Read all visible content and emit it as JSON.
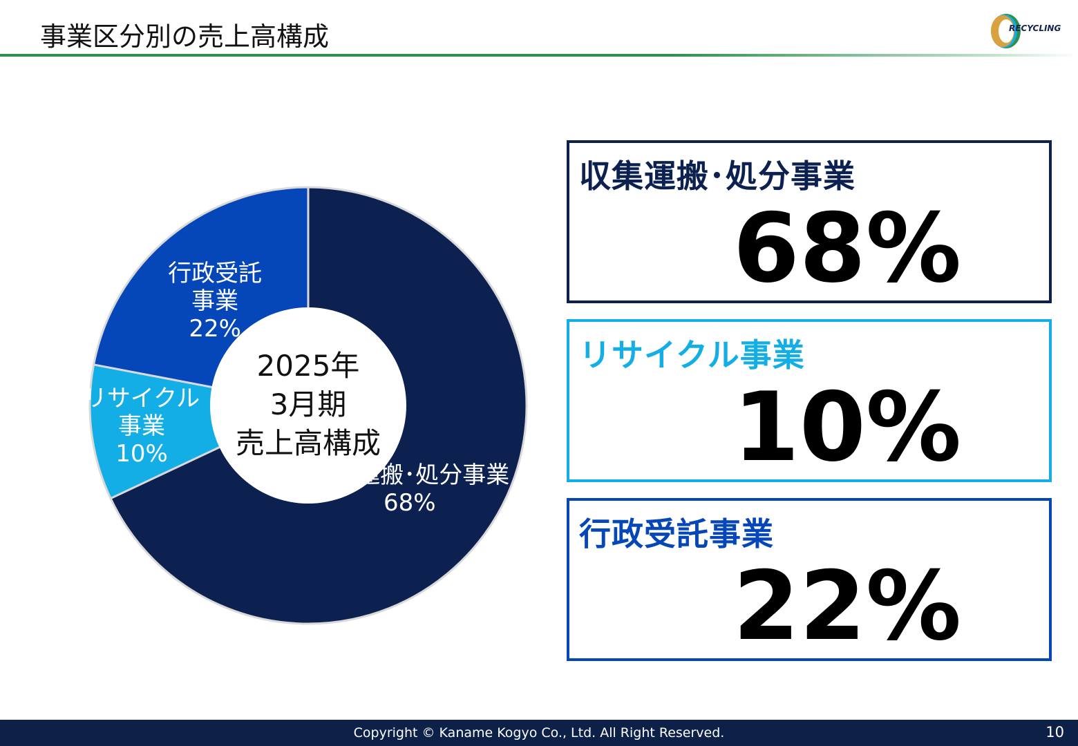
{
  "header": {
    "title": "事業区分別の売上高構成",
    "logo_text": "RECYCLING"
  },
  "colors": {
    "accent_green": "#2e8f4e",
    "navy": "#0d2150",
    "cyan": "#13aee6",
    "blue": "#0546b8",
    "footer": "#0c2048"
  },
  "chart_data": {
    "type": "pie",
    "style": "donut",
    "center_label": [
      "2025年",
      "3月期",
      "売上高構成"
    ],
    "slices": [
      {
        "lines": [
          "収集運搬･処分事業",
          "68%"
        ],
        "value": 68,
        "color": "#0d2150"
      },
      {
        "lines": [
          "リサイクル",
          "事業",
          "10%"
        ],
        "value": 10,
        "color": "#13aee6"
      },
      {
        "lines": [
          "行政受託",
          "事業",
          "22%"
        ],
        "value": 22,
        "color": "#0546b8"
      }
    ]
  },
  "stats": [
    {
      "name": "収集運搬･処分事業",
      "value": "68%",
      "color": "#0d2150"
    },
    {
      "name": "リサイクル事業",
      "value": "10%",
      "color": "#13aee6"
    },
    {
      "name": "行政受託事業",
      "value": "22%",
      "color": "#0546b8"
    }
  ],
  "footer": {
    "copyright": "Copyright © Kaname Kogyo Co., Ltd. All Right Reserved.",
    "page_number": "10"
  }
}
